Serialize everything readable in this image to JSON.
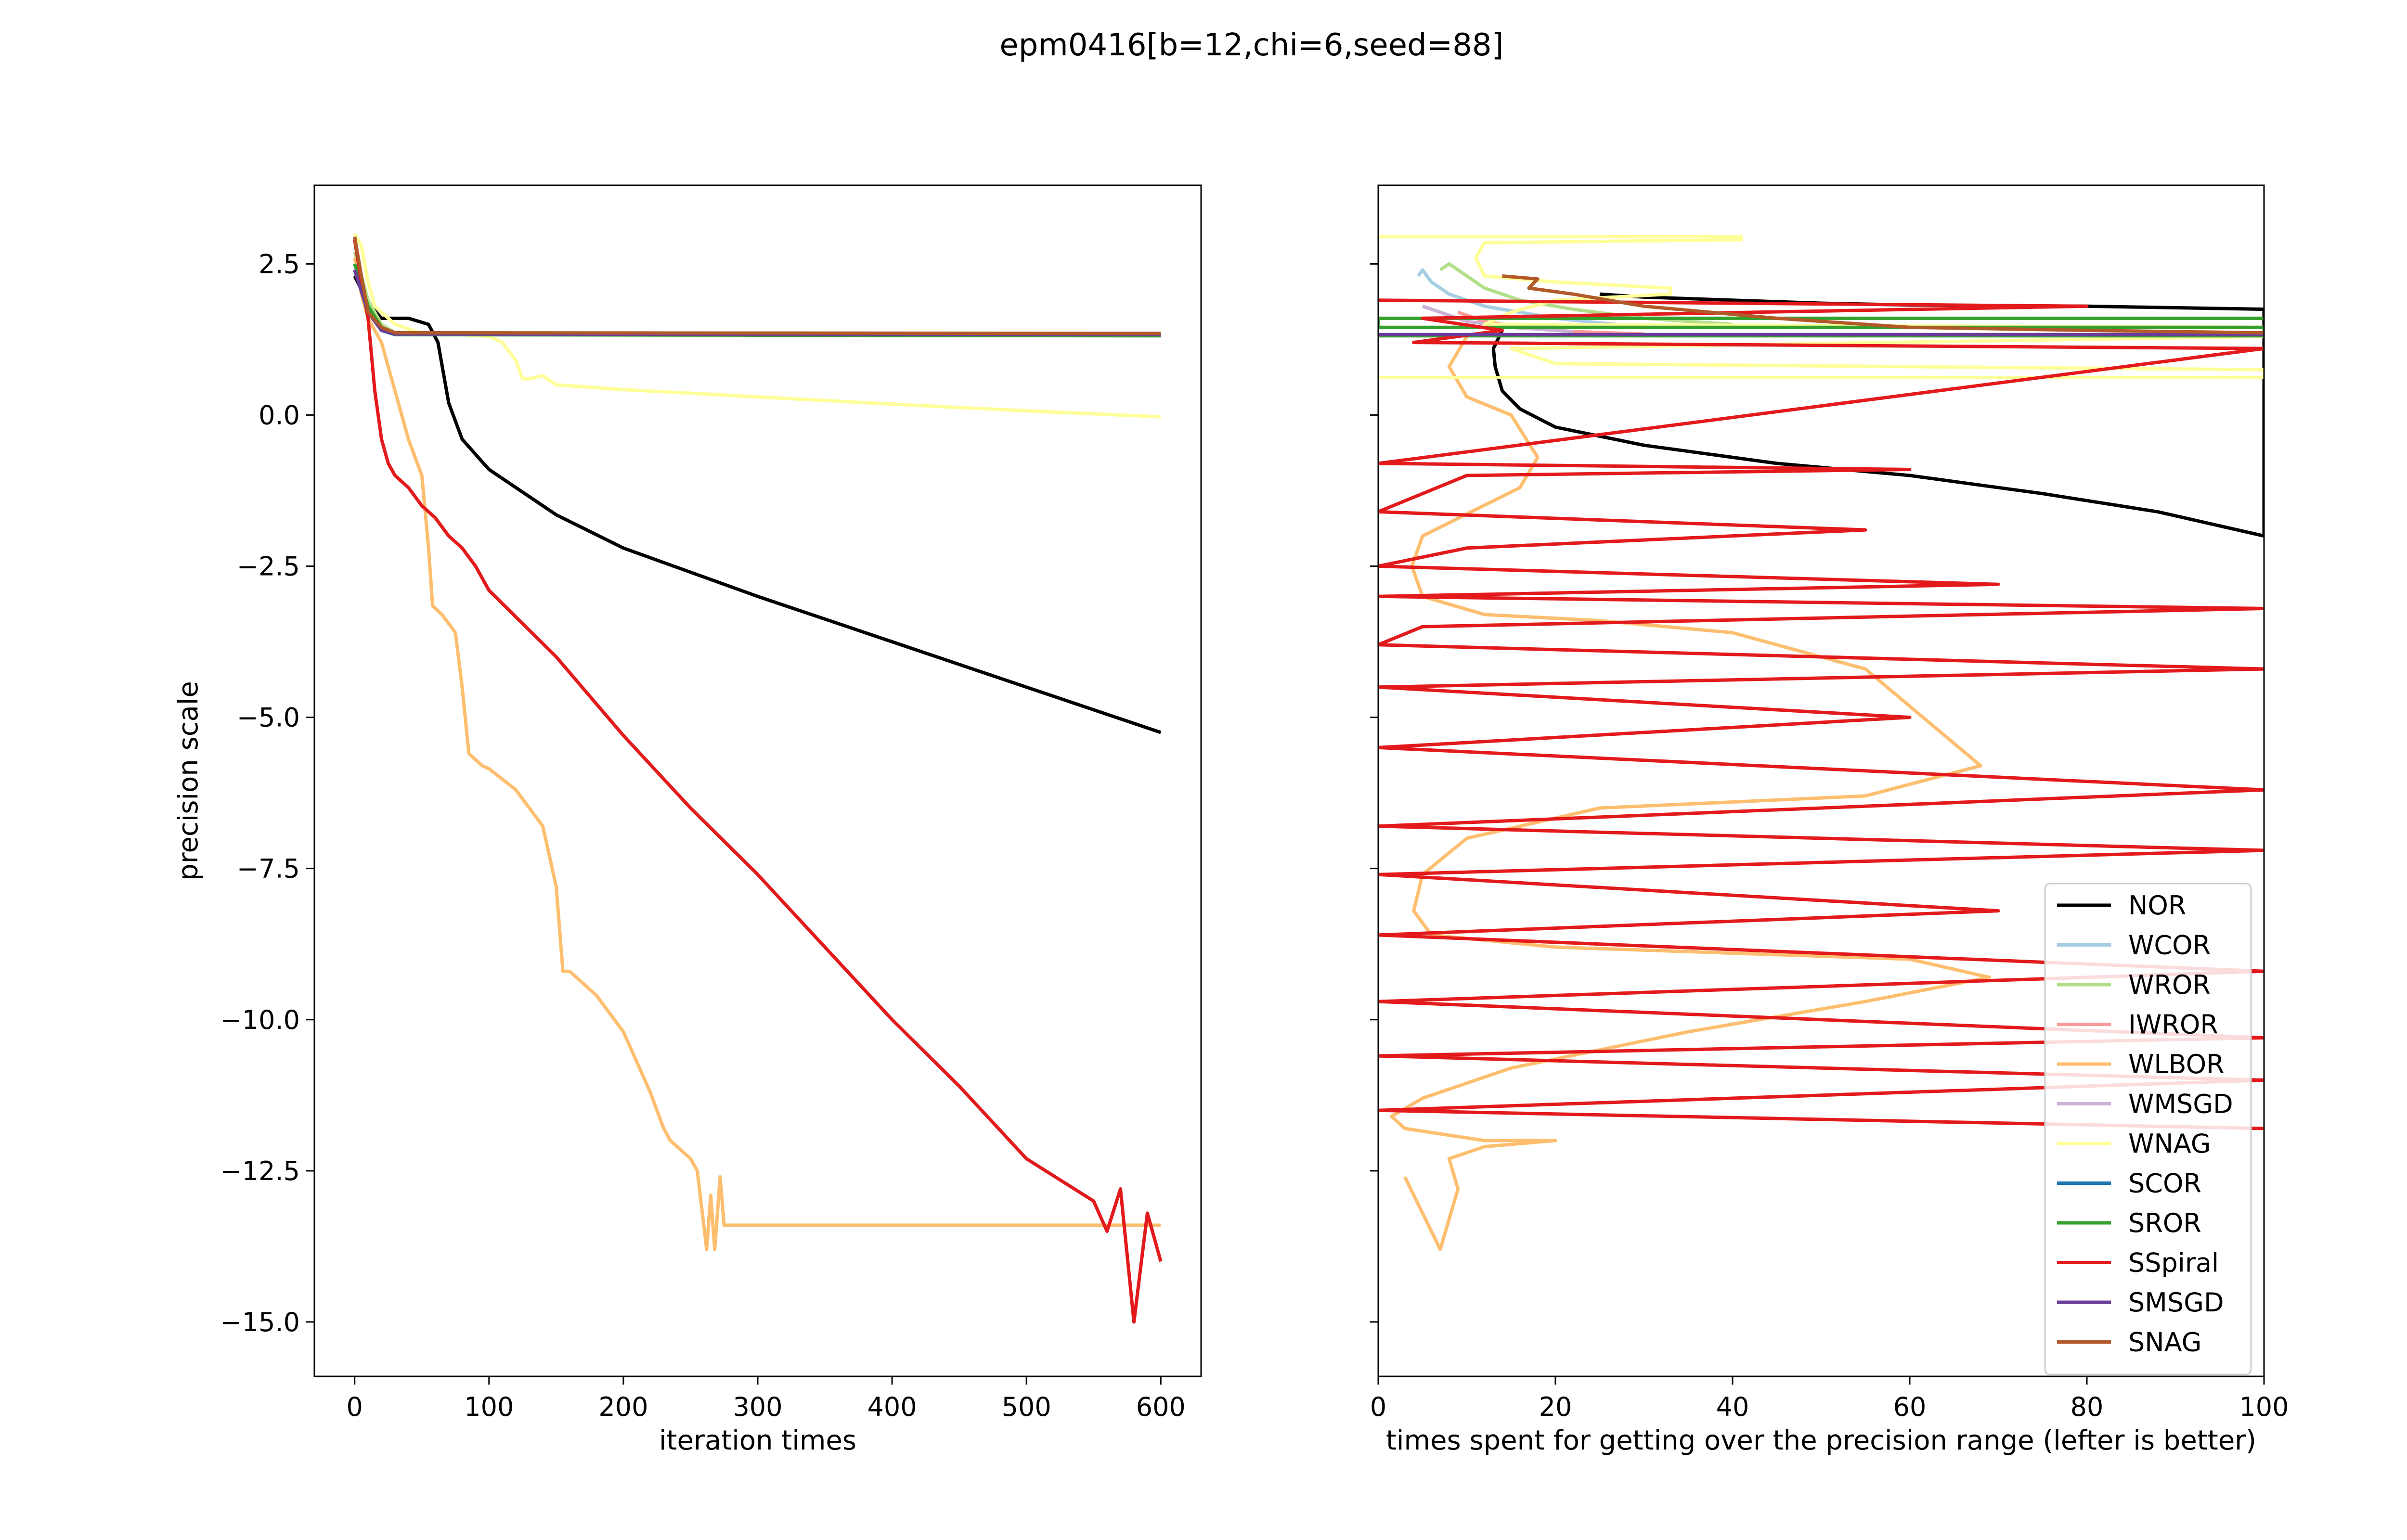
{
  "chart_data": [
    {
      "type": "line",
      "title": "epm0416[b=12,chi=6,seed=88]",
      "xlabel": "iteration times",
      "ylabel": "precision scale",
      "xlim": [
        -30,
        630
      ],
      "ylim": [
        -15.9,
        3.8
      ],
      "xticks": [
        0,
        100,
        200,
        300,
        400,
        500,
        600
      ],
      "yticks": [
        2.5,
        0.0,
        -2.5,
        -5.0,
        -7.5,
        -10.0,
        -12.5,
        -15.0
      ],
      "ytick_labels": [
        "2.5",
        "0.0",
        "−2.5",
        "−5.0",
        "−7.5",
        "−10.0",
        "−12.5",
        "−15.0"
      ],
      "grid": false,
      "series": [
        {
          "name": "NOR",
          "color": "#000000",
          "x": [
            0,
            10,
            20,
            40,
            55,
            62,
            70,
            80,
            100,
            150,
            200,
            300,
            400,
            500,
            600
          ],
          "y": [
            2.3,
            1.85,
            1.6,
            1.6,
            1.5,
            1.2,
            0.2,
            -0.4,
            -0.9,
            -1.65,
            -2.2,
            -3.0,
            -3.75,
            -4.5,
            -5.25
          ]
        },
        {
          "name": "WCOR",
          "color": "#a6cee3",
          "x": [
            0,
            10,
            20,
            30,
            600
          ],
          "y": [
            2.6,
            1.8,
            1.45,
            1.35,
            1.33
          ]
        },
        {
          "name": "WROR",
          "color": "#b2df8a",
          "x": [
            0,
            10,
            20,
            30,
            600
          ],
          "y": [
            2.7,
            1.9,
            1.5,
            1.36,
            1.33
          ]
        },
        {
          "name": "IWROR",
          "color": "#fb9a99",
          "x": [
            0,
            10,
            20,
            30,
            600
          ],
          "y": [
            2.5,
            1.7,
            1.4,
            1.34,
            1.33
          ]
        },
        {
          "name": "WLBOR",
          "color": "#fdbf6f",
          "x": [
            0,
            5,
            10,
            20,
            30,
            40,
            50,
            55,
            58,
            60,
            65,
            75,
            80,
            85,
            90,
            95,
            100,
            120,
            140,
            150,
            155,
            160,
            180,
            200,
            220,
            230,
            235,
            245,
            250,
            255,
            262,
            265,
            268,
            272,
            275,
            280,
            600
          ],
          "y": [
            2.6,
            2.0,
            1.6,
            1.2,
            0.4,
            -0.4,
            -1.0,
            -2.2,
            -3.15,
            -3.2,
            -3.3,
            -3.6,
            -4.5,
            -5.6,
            -5.7,
            -5.8,
            -5.85,
            -6.2,
            -6.8,
            -7.8,
            -9.2,
            -9.2,
            -9.6,
            -10.2,
            -11.2,
            -11.8,
            -12.0,
            -12.2,
            -12.3,
            -12.5,
            -13.8,
            -12.9,
            -13.8,
            -12.6,
            -13.4,
            -13.4,
            -13.4
          ]
        },
        {
          "name": "WMSGD",
          "color": "#cab2d6",
          "x": [
            0,
            10,
            20,
            30,
            600
          ],
          "y": [
            2.5,
            1.8,
            1.45,
            1.35,
            1.33
          ]
        },
        {
          "name": "WNAG",
          "color": "#ffff99",
          "x": [
            0,
            5,
            10,
            15,
            20,
            30,
            50,
            80,
            100,
            110,
            120,
            125,
            130,
            140,
            150,
            200,
            300,
            400,
            500,
            600
          ],
          "y": [
            3.0,
            2.8,
            2.2,
            1.8,
            1.7,
            1.5,
            1.35,
            1.33,
            1.3,
            1.2,
            0.9,
            0.6,
            0.6,
            0.65,
            0.5,
            0.42,
            0.3,
            0.18,
            0.07,
            -0.03
          ]
        },
        {
          "name": "SCOR",
          "color": "#1f78b4",
          "x": [
            0,
            10,
            20,
            30,
            600
          ],
          "y": [
            2.4,
            1.7,
            1.4,
            1.33,
            1.32
          ]
        },
        {
          "name": "SROR",
          "color": "#33a02c",
          "x": [
            0,
            10,
            20,
            30,
            600
          ],
          "y": [
            2.5,
            1.8,
            1.45,
            1.33,
            1.31
          ]
        },
        {
          "name": "SSpiral",
          "color": "#e31a1c",
          "x": [
            0,
            5,
            10,
            15,
            20,
            25,
            30,
            40,
            50,
            60,
            70,
            80,
            90,
            100,
            150,
            200,
            250,
            300,
            350,
            400,
            450,
            500,
            550,
            560,
            570,
            580,
            590,
            600
          ],
          "y": [
            2.9,
            2.2,
            1.6,
            0.4,
            -0.4,
            -0.8,
            -1.0,
            -1.2,
            -1.5,
            -1.7,
            -2.0,
            -2.2,
            -2.5,
            -2.9,
            -4.0,
            -5.3,
            -6.5,
            -7.6,
            -8.8,
            -10.0,
            -11.1,
            -12.3,
            -13.0,
            -13.5,
            -12.8,
            -15.0,
            -13.2,
            -14.0
          ]
        },
        {
          "name": "SMSGD",
          "color": "#6a3d9a",
          "x": [
            0,
            10,
            20,
            30,
            600
          ],
          "y": [
            2.4,
            1.7,
            1.4,
            1.34,
            1.33
          ]
        },
        {
          "name": "SNAG",
          "color": "#b15928",
          "x": [
            0,
            5,
            10,
            20,
            30,
            600
          ],
          "y": [
            2.95,
            2.3,
            1.7,
            1.45,
            1.36,
            1.35
          ]
        }
      ]
    },
    {
      "type": "line",
      "xlabel": "times spent for getting over the precision range (lefter is better)",
      "xlim": [
        0,
        100
      ],
      "ylim": [
        -15.9,
        3.8
      ],
      "xticks": [
        0,
        20,
        40,
        60,
        80,
        100
      ],
      "legend_position": "lower-right",
      "grid": false,
      "series": [
        {
          "name": "NOR",
          "color": "#000000",
          "x": [
            14,
            13,
            13.2,
            14,
            16,
            20,
            30,
            45,
            60,
            75,
            88,
            100,
            100,
            80,
            60,
            50,
            40,
            30,
            25
          ],
          "y": [
            1.4,
            1.1,
            0.8,
            0.4,
            0.1,
            -0.2,
            -0.5,
            -0.8,
            -1.0,
            -1.3,
            -1.6,
            -2.0,
            1.75,
            1.8,
            1.82,
            1.85,
            1.9,
            1.95,
            2.0
          ]
        },
        {
          "name": "WCOR",
          "color": "#a6cee3",
          "x": [
            4.5,
            5,
            6,
            8,
            12,
            20,
            30
          ],
          "y": [
            2.3,
            2.4,
            2.2,
            2.0,
            1.8,
            1.6,
            1.45
          ]
        },
        {
          "name": "WROR",
          "color": "#b2df8a",
          "x": [
            7,
            8,
            10,
            12,
            16,
            22,
            30,
            40
          ],
          "y": [
            2.4,
            2.5,
            2.3,
            2.1,
            1.9,
            1.75,
            1.6,
            1.5
          ]
        },
        {
          "name": "IWROR",
          "color": "#fb9a99",
          "x": [
            9,
            12,
            16,
            22,
            30
          ],
          "y": [
            1.7,
            1.55,
            1.45,
            1.38,
            1.34
          ]
        },
        {
          "name": "WLBOR",
          "color": "#fdbf6f",
          "x": [
            10,
            8,
            10,
            15,
            18,
            16,
            5,
            3.8,
            5,
            12,
            25,
            40,
            55,
            68,
            55,
            40,
            25,
            10,
            5,
            4,
            6,
            20,
            40,
            60,
            69,
            55,
            35,
            15,
            5,
            1.5,
            3,
            12,
            20,
            12,
            8,
            9,
            7,
            3
          ],
          "y": [
            1.3,
            0.8,
            0.3,
            0.0,
            -0.7,
            -1.2,
            -2.0,
            -2.5,
            -3.0,
            -3.3,
            -3.4,
            -3.6,
            -4.2,
            -5.8,
            -6.3,
            -6.4,
            -6.5,
            -7.0,
            -7.6,
            -8.2,
            -8.6,
            -8.8,
            -8.9,
            -9.0,
            -9.3,
            -9.7,
            -10.2,
            -10.8,
            -11.3,
            -11.6,
            -11.8,
            -12.0,
            -12.0,
            -12.1,
            -12.3,
            -12.8,
            -13.8,
            -12.6
          ]
        },
        {
          "name": "WMSGD",
          "color": "#cab2d6",
          "x": [
            5,
            7,
            10,
            15,
            22
          ],
          "y": [
            1.8,
            1.7,
            1.55,
            1.45,
            1.38
          ]
        },
        {
          "name": "WNAG",
          "color": "#ffff99",
          "x": [
            0,
            41,
            41,
            12,
            11,
            12,
            20,
            33,
            33,
            20,
            15,
            12,
            100,
            100,
            15,
            20,
            100,
            100,
            0
          ],
          "y": [
            2.95,
            2.95,
            2.9,
            2.85,
            2.6,
            2.3,
            2.2,
            2.1,
            2.0,
            1.9,
            1.7,
            1.5,
            1.45,
            1.3,
            1.1,
            0.85,
            0.75,
            0.62,
            0.62
          ]
        },
        {
          "name": "SCOR",
          "color": "#1f78b4",
          "x": [
            0,
            100
          ],
          "y": [
            1.32,
            1.32
          ]
        },
        {
          "name": "SROR",
          "color": "#33a02c",
          "x": [
            0,
            100,
            100,
            0,
            0,
            100
          ],
          "y": [
            1.31,
            1.31,
            1.45,
            1.45,
            1.6,
            1.6
          ]
        },
        {
          "name": "SSpiral",
          "color": "#e31a1c",
          "x": [
            0,
            80,
            5,
            14,
            4,
            100,
            0,
            60,
            10,
            5,
            0,
            55,
            10,
            0,
            70,
            0,
            100,
            5,
            0,
            100,
            0,
            60,
            0,
            100,
            0,
            100,
            0,
            70,
            0,
            100,
            0,
            100,
            0,
            100,
            0,
            100
          ],
          "y": [
            1.9,
            1.8,
            1.6,
            1.4,
            1.2,
            1.1,
            -0.8,
            -0.9,
            -1.0,
            -1.3,
            -1.6,
            -1.9,
            -2.2,
            -2.5,
            -2.8,
            -3.0,
            -3.2,
            -3.5,
            -3.8,
            -4.2,
            -4.5,
            -5.0,
            -5.5,
            -6.2,
            -6.8,
            -7.2,
            -7.6,
            -8.2,
            -8.6,
            -9.2,
            -9.7,
            -10.3,
            -10.6,
            -11.0,
            -11.5,
            -11.8
          ]
        },
        {
          "name": "SMSGD",
          "color": "#6a3d9a",
          "x": [
            0,
            100
          ],
          "y": [
            1.33,
            1.33
          ]
        },
        {
          "name": "SNAG",
          "color": "#b15928",
          "x": [
            14,
            18,
            17,
            22,
            30,
            45,
            60,
            80,
            100
          ],
          "y": [
            2.3,
            2.25,
            2.1,
            2.0,
            1.8,
            1.6,
            1.45,
            1.4,
            1.36
          ]
        }
      ]
    }
  ]
}
